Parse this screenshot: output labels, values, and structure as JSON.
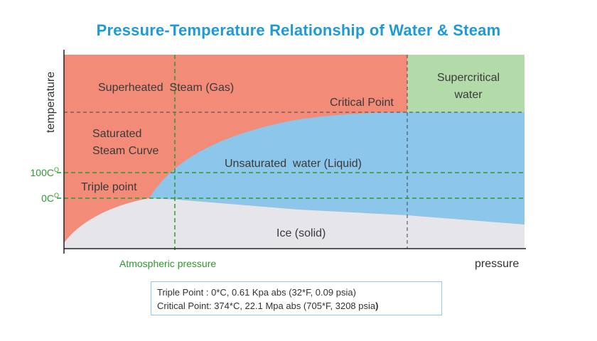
{
  "title": "Pressure-Temperature Relationship of Water & Steam",
  "axes": {
    "y_label": "temperature",
    "x_label": "pressure"
  },
  "regions": {
    "superheated": "Superheated  Steam (Gas)",
    "supercritical_line1": "Supercritical",
    "supercritical_line2": "water",
    "critical_point": "Critical Point",
    "saturated_line1": "Saturated",
    "saturated_line2": "Steam Curve",
    "unsaturated": "Unsaturated  water (Liquid)",
    "triple_point": "Triple point",
    "ice": "Ice (solid)"
  },
  "markers": {
    "temp_100": "100C",
    "temp_100_sup": "O",
    "temp_0": "0C",
    "temp_0_sup": "O",
    "atmospheric": "Atmospheric pressure"
  },
  "info": {
    "line1": "Triple Point : 0*C, 0.61 Kpa abs (32*F, 0.09 psia)",
    "line2_main": "Critical Point: 374*C, 22.1 Mpa abs (705*F, 3208 psia",
    "line2_close": ")"
  },
  "colors": {
    "title": "#1e9ad6",
    "steam": "#f28b77",
    "liquid": "#8cc6ea",
    "ice": "#e6e6ea",
    "supercritical": "#b3dba9",
    "green_lines": "#2e9a2e"
  }
}
